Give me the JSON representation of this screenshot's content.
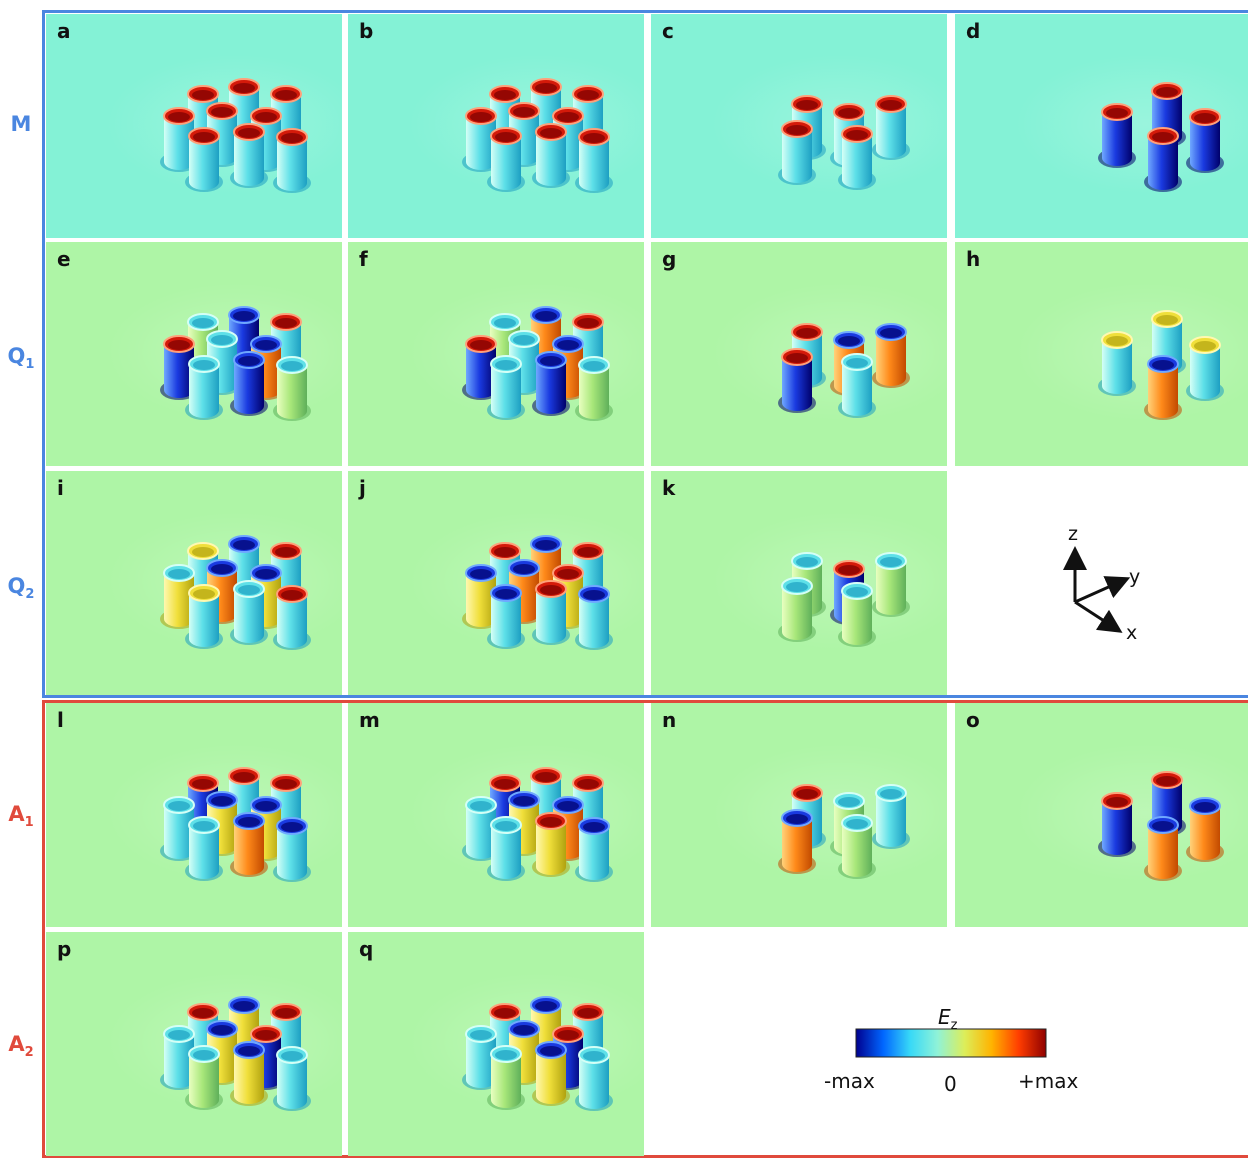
{
  "rows": [
    {
      "label": "M",
      "sub": "",
      "color": "#4a86e0"
    },
    {
      "label": "Q",
      "sub": "1",
      "color": "#4a86e0"
    },
    {
      "label": "Q",
      "sub": "2",
      "color": "#4a86e0"
    },
    {
      "label": "A",
      "sub": "1",
      "color": "#e04a3c"
    },
    {
      "label": "A",
      "sub": "2",
      "color": "#e04a3c"
    }
  ],
  "colors": {
    "group_blue": "#4a86e0",
    "group_red": "#e04a3c",
    "bg_teal": "#84f2d6",
    "bg_green": "#aef5a6"
  },
  "panels": [
    {
      "id": "a",
      "bg": "teal",
      "caps": [
        "r",
        "r",
        "r",
        "r",
        "r",
        "r",
        "r",
        "r",
        "r"
      ],
      "bodies": [
        "c",
        "c",
        "c",
        "c",
        "c",
        "c",
        "c",
        "c",
        "c"
      ]
    },
    {
      "id": "b",
      "bg": "teal",
      "caps": [
        "r",
        "r",
        "r",
        "r",
        "r",
        "r",
        "r",
        "r",
        "r"
      ],
      "bodies": [
        "c",
        "c",
        "c",
        "c",
        "c",
        "c",
        "c",
        "c",
        "c"
      ]
    },
    {
      "id": "c",
      "bg": "teal",
      "caps": [
        "r",
        "r",
        "r",
        "r",
        "r"
      ],
      "bodies": [
        "c",
        "c",
        "c",
        "c",
        "c"
      ]
    },
    {
      "id": "d",
      "bg": "teal",
      "caps": [
        "r",
        "r",
        "r",
        "r"
      ],
      "bodies": [
        "b",
        "b",
        "b",
        "b"
      ]
    },
    {
      "id": "e",
      "bg": "green",
      "caps": [
        "c",
        "b",
        "r",
        "r",
        "c",
        "b",
        "c",
        "b",
        "c"
      ],
      "bodies": [
        "g",
        "b",
        "c",
        "b",
        "c",
        "o",
        "c",
        "b",
        "g"
      ]
    },
    {
      "id": "f",
      "bg": "green",
      "caps": [
        "c",
        "b",
        "r",
        "r",
        "c",
        "b",
        "c",
        "b",
        "c"
      ],
      "bodies": [
        "g",
        "o",
        "c",
        "b",
        "c",
        "o",
        "c",
        "b",
        "g"
      ]
    },
    {
      "id": "g",
      "bg": "green",
      "caps": [
        "r",
        "b",
        "b",
        "r",
        "c"
      ],
      "bodies": [
        "c",
        "o",
        "o",
        "b",
        "c"
      ]
    },
    {
      "id": "h",
      "bg": "green",
      "caps": [
        "y",
        "y",
        "b",
        "y"
      ],
      "bodies": [
        "c",
        "c",
        "o",
        "c"
      ]
    },
    {
      "id": "i",
      "bg": "green",
      "caps": [
        "y",
        "b",
        "r",
        "c",
        "b",
        "b",
        "y",
        "c",
        "r"
      ],
      "bodies": [
        "c",
        "c",
        "c",
        "y",
        "o",
        "y",
        "c",
        "c",
        "c"
      ]
    },
    {
      "id": "j",
      "bg": "green",
      "caps": [
        "r",
        "b",
        "r",
        "b",
        "b",
        "r",
        "b",
        "r",
        "b"
      ],
      "bodies": [
        "c",
        "o",
        "c",
        "y",
        "o",
        "y",
        "c",
        "c",
        "c"
      ]
    },
    {
      "id": "k",
      "bg": "green",
      "caps": [
        "c",
        "r",
        "c",
        "c",
        "c"
      ],
      "bodies": [
        "g",
        "b",
        "g",
        "g",
        "g"
      ]
    },
    {
      "id": "l",
      "bg": "green",
      "caps": [
        "r",
        "r",
        "r",
        "c",
        "b",
        "b",
        "c",
        "b",
        "b"
      ],
      "bodies": [
        "b",
        "c",
        "c",
        "c",
        "y",
        "y",
        "c",
        "o",
        "c"
      ]
    },
    {
      "id": "m",
      "bg": "green",
      "caps": [
        "r",
        "r",
        "r",
        "c",
        "b",
        "b",
        "c",
        "r",
        "b"
      ],
      "bodies": [
        "b",
        "c",
        "c",
        "c",
        "y",
        "o",
        "c",
        "y",
        "c"
      ]
    },
    {
      "id": "n",
      "bg": "green",
      "caps": [
        "r",
        "c",
        "c",
        "b",
        "c"
      ],
      "bodies": [
        "c",
        "g",
        "c",
        "o",
        "g"
      ]
    },
    {
      "id": "o",
      "bg": "green",
      "caps": [
        "r",
        "r",
        "b",
        "b"
      ],
      "bodies": [
        "b",
        "b",
        "o",
        "o"
      ]
    },
    {
      "id": "p",
      "bg": "green",
      "caps": [
        "r",
        "b",
        "r",
        "c",
        "b",
        "r",
        "c",
        "b",
        "c"
      ],
      "bodies": [
        "c",
        "y",
        "c",
        "c",
        "y",
        "b",
        "g",
        "y",
        "c"
      ]
    },
    {
      "id": "q",
      "bg": "green",
      "caps": [
        "r",
        "b",
        "r",
        "c",
        "b",
        "r",
        "c",
        "b",
        "c"
      ],
      "bodies": [
        "c",
        "y",
        "c",
        "c",
        "y",
        "b",
        "g",
        "y",
        "c"
      ]
    }
  ],
  "axes": {
    "z": "z",
    "y": "y",
    "x": "x"
  },
  "colorbar": {
    "title": "E",
    "title_sub": "z",
    "min_label": "-max",
    "mid_label": "0",
    "max_label": "+max",
    "stops": [
      "#00008f",
      "#0066ff",
      "#38d9f7",
      "#8ff2d8",
      "#dcee5a",
      "#ffb300",
      "#ff3d00",
      "#8f0000"
    ]
  }
}
